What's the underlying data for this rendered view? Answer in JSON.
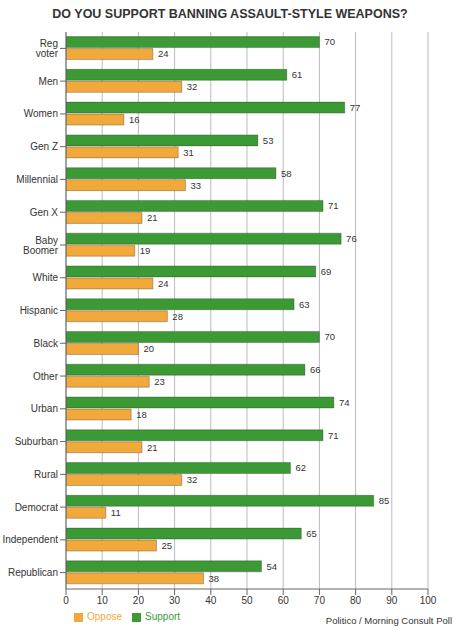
{
  "chart_data": {
    "type": "bar",
    "title": "DO YOU SUPPORT BANNING ASSAULT-STYLE WEAPONS?",
    "annotation": "Politico / Morning Consult Poll",
    "orientation": "horizontal",
    "categories": [
      "Reg voter",
      "Men",
      "Women",
      "Gen Z",
      "Millennial",
      "Gen X",
      "Baby Boomer",
      "White",
      "Hispanic",
      "Black",
      "Other",
      "Urban",
      "Suburban",
      "Rural",
      "Democrat",
      "Independent",
      "Republican"
    ],
    "series": [
      {
        "name": "Support",
        "color": "#3c9a34",
        "values": [
          70,
          61,
          77,
          53,
          58,
          71,
          76,
          69,
          63,
          70,
          66,
          74,
          71,
          62,
          85,
          65,
          54
        ]
      },
      {
        "name": "Oppose",
        "color": "#f2a93b",
        "values": [
          24,
          32,
          16,
          31,
          33,
          21,
          19,
          24,
          28,
          20,
          23,
          18,
          21,
          32,
          11,
          25,
          38
        ]
      }
    ],
    "xlim": [
      0,
      100
    ],
    "xticks": [
      0,
      10,
      20,
      30,
      40,
      50,
      60,
      70,
      80,
      90,
      100
    ],
    "grid": true,
    "data_labels": true,
    "legend": "bottom"
  }
}
